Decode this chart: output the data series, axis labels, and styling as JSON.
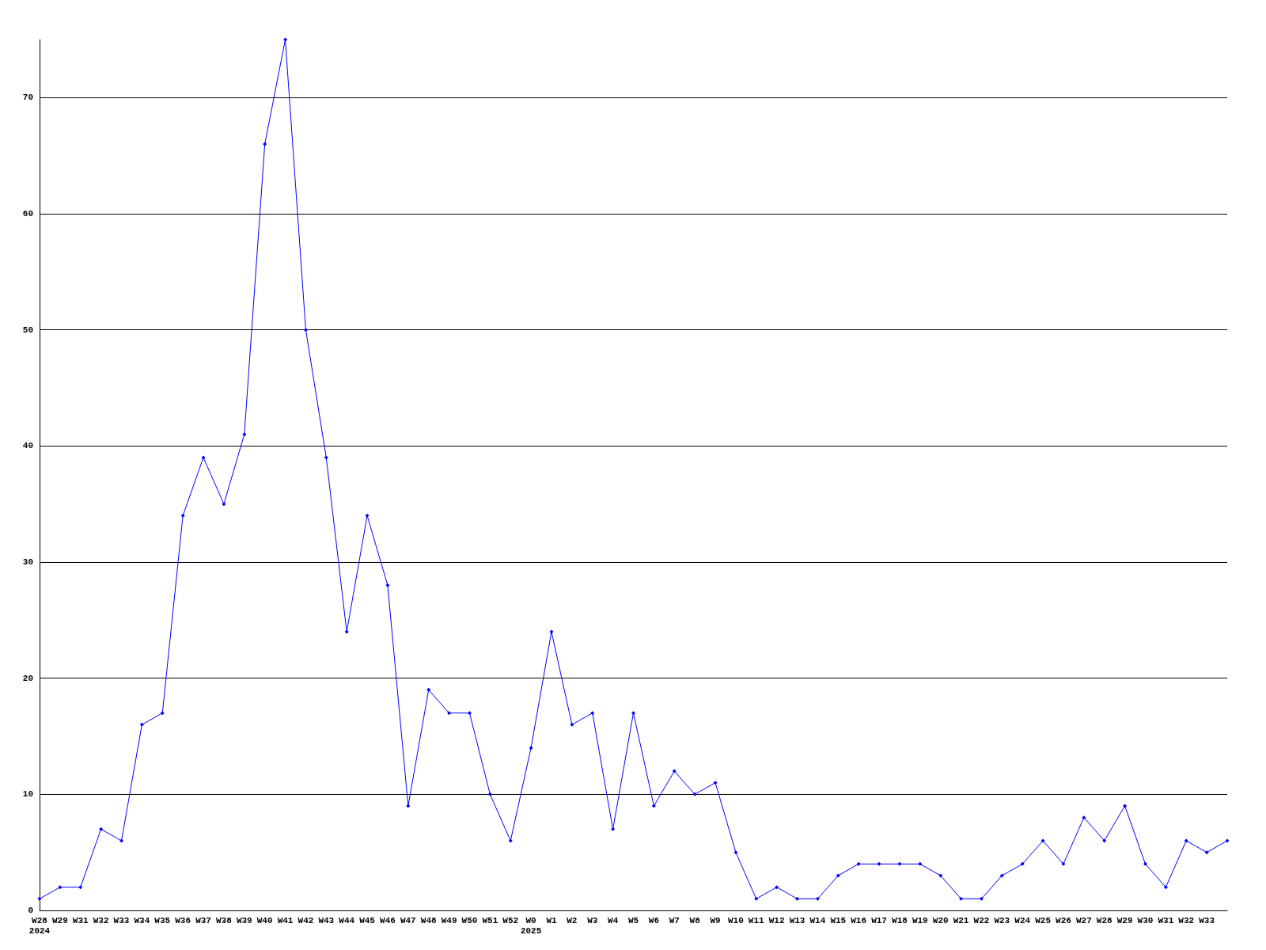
{
  "chart_data": {
    "type": "line",
    "categories": [
      "W28\n2024",
      "W29",
      "W31",
      "W32",
      "W33",
      "W34",
      "W35",
      "W36",
      "W37",
      "W38",
      "W39",
      "W40",
      "W41",
      "W42",
      "W43",
      "W44",
      "W45",
      "W46",
      "W47",
      "W48",
      "W49",
      "W50",
      "W51",
      "W52",
      "W0\n2025",
      "W1",
      "W2",
      "W3",
      "W4",
      "W5",
      "W6",
      "W7",
      "W8",
      "W9",
      "W10",
      "W11",
      "W12",
      "W13",
      "W14",
      "W15",
      "W16",
      "W17",
      "W18",
      "W19",
      "W20",
      "W21",
      "W22",
      "W23",
      "W24",
      "W25",
      "W26",
      "W27",
      "W28",
      "W29",
      "W30",
      "W31",
      "W32",
      "W33",
      null
    ],
    "series": [
      {
        "color": "#0000ff",
        "values": [
          1,
          2,
          2,
          7,
          6,
          16,
          17,
          34,
          39,
          35,
          41,
          66,
          75,
          50,
          39,
          24,
          34,
          28,
          9,
          19,
          17,
          17,
          10,
          6,
          14,
          24,
          16,
          17,
          7,
          17,
          9,
          12,
          10,
          11,
          5,
          1,
          2,
          1,
          1,
          3,
          4,
          4,
          4,
          4,
          3,
          1,
          1,
          3,
          4,
          6,
          4,
          8,
          6,
          9,
          4,
          2,
          6,
          5,
          6
        ]
      }
    ],
    "ylim": [
      0,
      75
    ],
    "yticks": [
      0,
      10,
      20,
      30,
      40,
      50,
      60,
      70
    ],
    "grid": "y",
    "marker": "diamond",
    "line_style": "solid"
  }
}
